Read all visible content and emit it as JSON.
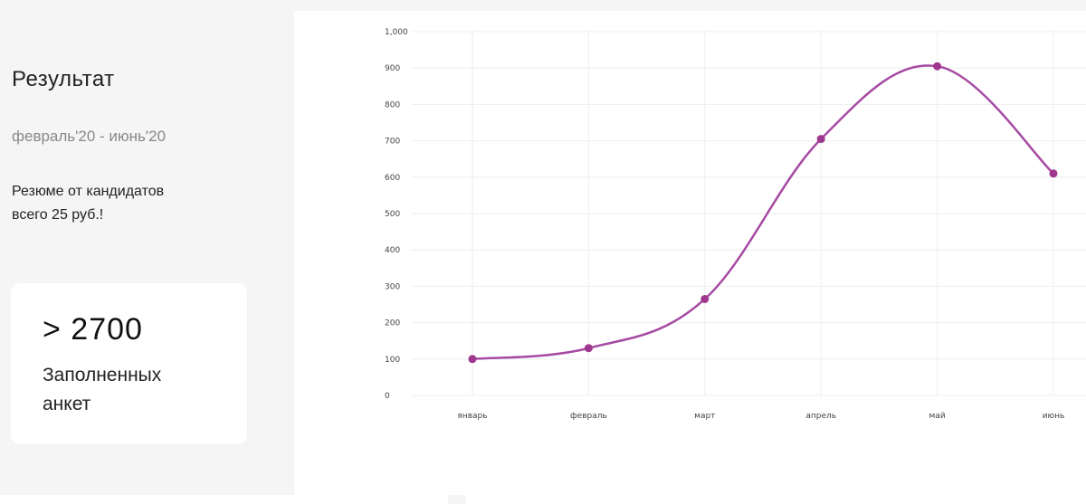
{
  "summary": {
    "title": "Результат",
    "period": "февраль'20 - июнь'20",
    "promo_line1": "Резюме от кандидатов",
    "promo_line2": "всего 25 руб.!"
  },
  "stat": {
    "value": "> 2700",
    "label_line1": "Заполненных",
    "label_line2": "анкет"
  },
  "colors": {
    "line": "#a64aa3",
    "point": "#a0378f"
  },
  "chart_data": {
    "type": "line",
    "categories": [
      "январь",
      "февраль",
      "март",
      "апрель",
      "май",
      "июнь"
    ],
    "series": [
      {
        "values": [
          100,
          130,
          265,
          705,
          905,
          610
        ]
      }
    ],
    "ylim": [
      0,
      1000
    ],
    "yticks": [
      "0",
      "100",
      "200",
      "300",
      "400",
      "500",
      "600",
      "700",
      "800",
      "900",
      "1,000"
    ],
    "grid": true,
    "smooth": true
  }
}
